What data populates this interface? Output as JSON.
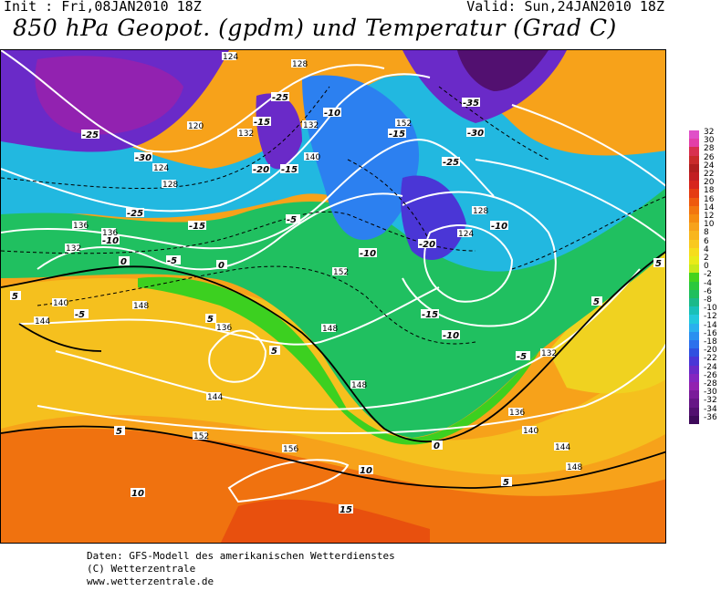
{
  "header": {
    "init": "Init : Fri,08JAN2010 18Z",
    "valid": "Valid: Sun,24JAN2010 18Z",
    "title": "850 hPa Geopot. (gpdm) und Temperatur (Grad C)"
  },
  "legend": {
    "items": [
      {
        "label": "32",
        "color": "#e050c8"
      },
      {
        "label": "30",
        "color": "#e33fa8"
      },
      {
        "label": "28",
        "color": "#d8304f"
      },
      {
        "label": "26",
        "color": "#c92a2a"
      },
      {
        "label": "24",
        "color": "#b01e1e"
      },
      {
        "label": "22",
        "color": "#c21f22"
      },
      {
        "label": "20",
        "color": "#d7261c"
      },
      {
        "label": "18",
        "color": "#e53c12"
      },
      {
        "label": "16",
        "color": "#ee5a0e"
      },
      {
        "label": "14",
        "color": "#f2760f"
      },
      {
        "label": "12",
        "color": "#f58c10"
      },
      {
        "label": "10",
        "color": "#f7a21a"
      },
      {
        "label": "8",
        "color": "#f8b61e"
      },
      {
        "label": "6",
        "color": "#f9c91f"
      },
      {
        "label": "4",
        "color": "#f6dd1b"
      },
      {
        "label": "2",
        "color": "#e9eb18"
      },
      {
        "label": "0",
        "color": "#c8e91a"
      },
      {
        "label": "-2",
        "color": "#44d31c"
      },
      {
        "label": "-4",
        "color": "#2bc83c"
      },
      {
        "label": "-6",
        "color": "#1fbf5e"
      },
      {
        "label": "-8",
        "color": "#1ab98a"
      },
      {
        "label": "-10",
        "color": "#18c0b8"
      },
      {
        "label": "-12",
        "color": "#22c8dc"
      },
      {
        "label": "-14",
        "color": "#2ab0ee"
      },
      {
        "label": "-16",
        "color": "#2a90f0"
      },
      {
        "label": "-18",
        "color": "#2c70ec"
      },
      {
        "label": "-20",
        "color": "#3050e0"
      },
      {
        "label": "-22",
        "color": "#4a36d6"
      },
      {
        "label": "-24",
        "color": "#6a2ac8"
      },
      {
        "label": "-26",
        "color": "#8426c0"
      },
      {
        "label": "-28",
        "color": "#9222b0"
      },
      {
        "label": "-30",
        "color": "#7a1c9a"
      },
      {
        "label": "-32",
        "color": "#661686"
      },
      {
        "label": "-34",
        "color": "#521070"
      },
      {
        "label": "-36",
        "color": "#3e0a5a"
      }
    ]
  },
  "map_labels": {
    "geopot": [
      "124",
      "128",
      "120",
      "132",
      "124",
      "128",
      "136",
      "132",
      "136",
      "140",
      "144",
      "148",
      "136",
      "132",
      "140",
      "152",
      "148",
      "128",
      "124",
      "144",
      "152",
      "156",
      "132",
      "136",
      "140",
      "144",
      "148",
      "148",
      "152"
    ],
    "temps": [
      "-25",
      "-30",
      "-25",
      "-15",
      "-10",
      "-5",
      "-20",
      "-15",
      "-15",
      "-10",
      "-35",
      "-30",
      "-15",
      "-25",
      "-20",
      "-10",
      "-10",
      "-15",
      "-10",
      "-5",
      "-5",
      "0",
      "0",
      "5",
      "5",
      "5",
      "5",
      "5",
      "10",
      "10",
      "15",
      "5",
      "0",
      "5",
      "-5",
      "-25"
    ]
  },
  "footer": {
    "line1": "Daten: GFS-Modell des amerikanischen Wetterdienstes",
    "line2": "(C) Wetterzentrale",
    "line3": "www.wetterzentrale.de"
  }
}
